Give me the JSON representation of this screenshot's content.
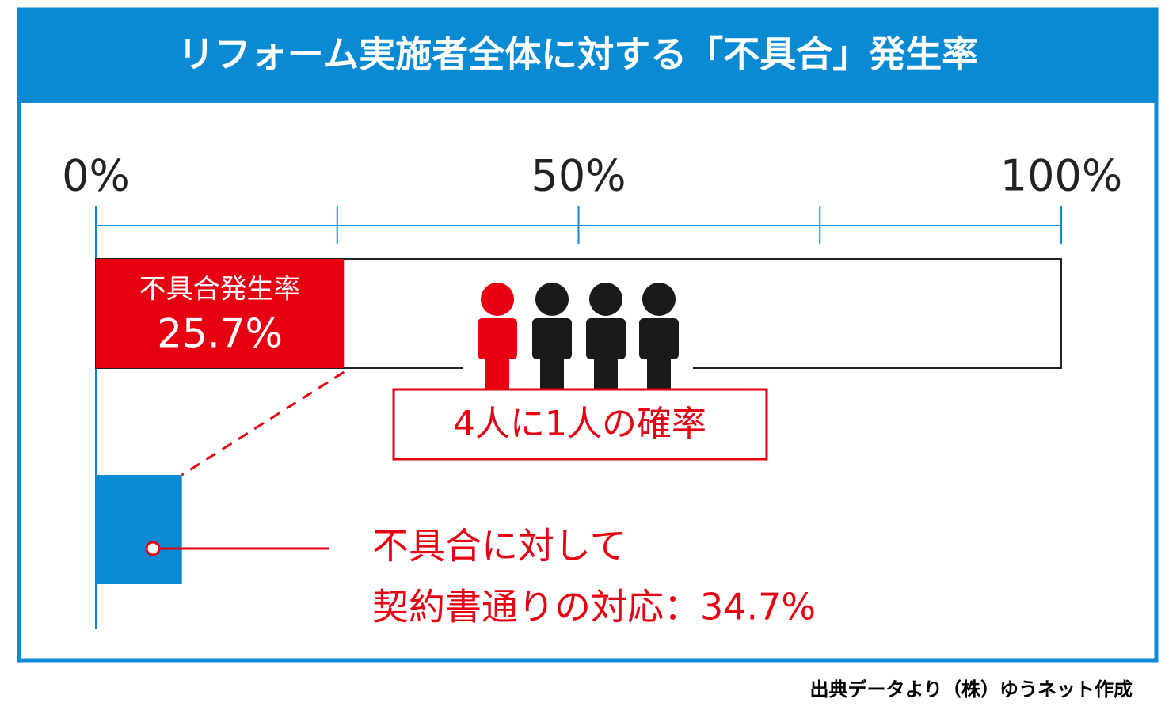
{
  "chart_data": {
    "type": "bar",
    "title": "リフォーム実施者全体に対する「不具合」発生率",
    "categories": [
      "不具合発生率"
    ],
    "values": [
      25.7
    ],
    "value_labels": [
      "25.7%"
    ],
    "color": "#e60012",
    "xlim": [
      0,
      100
    ],
    "xticks": [
      {
        "value": 0,
        "label": "0%"
      },
      {
        "value": 50,
        "label": "50%"
      },
      {
        "value": 100,
        "label": "100%"
      }
    ],
    "minor_xticks": [
      25,
      75
    ],
    "breakdown": {
      "label": "不具合に対して",
      "value": 34.7,
      "value_label": "契約書通りの対応：34.7%",
      "color": "#0a8ad2"
    },
    "annotation": "4人に1人の確率",
    "source": "出典データより（株）ゆうネット作成"
  }
}
